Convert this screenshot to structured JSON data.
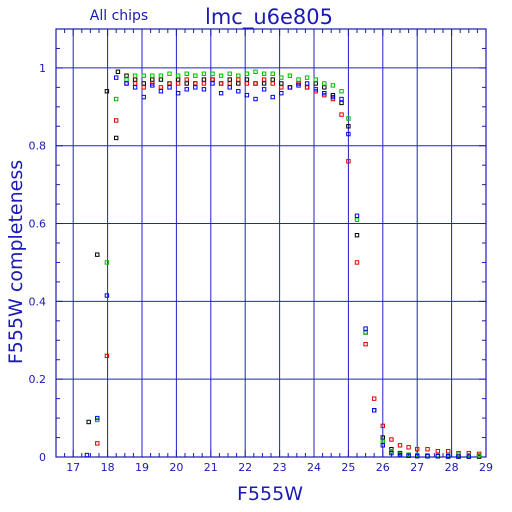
{
  "chart_data": {
    "type": "scatter",
    "title": "lmc_u6e805",
    "subtitle": "All chips",
    "xlabel": "F555W",
    "ylabel": "F555W completeness",
    "xlim": [
      16.5,
      29
    ],
    "ylim": [
      0,
      1.1
    ],
    "xticks": [
      17,
      18,
      19,
      20,
      21,
      22,
      23,
      24,
      25,
      26,
      27,
      28,
      29
    ],
    "yticks": [
      0,
      0.2,
      0.4,
      0.6,
      0.8,
      1
    ],
    "ytick_labels": [
      "0",
      "0.2",
      "0.4",
      "0.6",
      "0.8",
      "1"
    ],
    "grid": true,
    "marker": "open-square",
    "colors": {
      "axis": "#1a1ab4",
      "grid": "#2222cc"
    },
    "series": [
      {
        "color": "#000000",
        "points": [
          [
            17.45,
            0.09
          ],
          [
            17.7,
            0.52
          ],
          [
            17.98,
            0.94
          ],
          [
            18.25,
            0.82
          ],
          [
            18.3,
            0.99
          ],
          [
            18.55,
            0.98
          ],
          [
            18.8,
            0.97
          ],
          [
            19.05,
            0.96
          ],
          [
            19.3,
            0.97
          ],
          [
            19.55,
            0.97
          ],
          [
            19.8,
            0.96
          ],
          [
            20.05,
            0.97
          ],
          [
            20.3,
            0.96
          ],
          [
            20.55,
            0.96
          ],
          [
            20.8,
            0.97
          ],
          [
            21.05,
            0.97
          ],
          [
            21.3,
            0.96
          ],
          [
            21.55,
            0.97
          ],
          [
            21.8,
            0.96
          ],
          [
            22.05,
            0.97
          ],
          [
            22.3,
            0.96
          ],
          [
            22.55,
            0.96
          ],
          [
            22.8,
            0.97
          ],
          [
            23.05,
            0.96
          ],
          [
            23.3,
            0.95
          ],
          [
            23.55,
            0.96
          ],
          [
            23.8,
            0.95
          ],
          [
            24.05,
            0.96
          ],
          [
            24.3,
            0.95
          ],
          [
            24.55,
            0.93
          ],
          [
            24.8,
            0.91
          ],
          [
            25.0,
            0.85
          ],
          [
            25.25,
            0.57
          ],
          [
            25.5,
            0.32
          ],
          [
            25.75,
            0.12
          ],
          [
            26.0,
            0.05
          ],
          [
            26.25,
            0.02
          ],
          [
            26.5,
            0.01
          ],
          [
            26.75,
            0.005
          ],
          [
            27.0,
            0.003
          ],
          [
            27.3,
            0.002
          ],
          [
            27.6,
            0.002
          ],
          [
            27.9,
            0.001
          ],
          [
            28.2,
            0.001
          ],
          [
            28.5,
            0.001
          ],
          [
            28.8,
            0.001
          ]
        ]
      },
      {
        "color": "#dd0000",
        "points": [
          [
            17.7,
            0.035
          ],
          [
            17.98,
            0.26
          ],
          [
            18.25,
            0.865
          ],
          [
            18.55,
            0.96
          ],
          [
            18.8,
            0.96
          ],
          [
            19.05,
            0.95
          ],
          [
            19.3,
            0.96
          ],
          [
            19.55,
            0.95
          ],
          [
            19.8,
            0.96
          ],
          [
            20.05,
            0.96
          ],
          [
            20.3,
            0.97
          ],
          [
            20.55,
            0.96
          ],
          [
            20.8,
            0.96
          ],
          [
            21.05,
            0.97
          ],
          [
            21.3,
            0.96
          ],
          [
            21.55,
            0.96
          ],
          [
            21.8,
            0.97
          ],
          [
            22.05,
            0.96
          ],
          [
            22.3,
            0.96
          ],
          [
            22.55,
            0.97
          ],
          [
            22.8,
            0.96
          ],
          [
            23.05,
            0.95
          ],
          [
            23.3,
            0.95
          ],
          [
            23.55,
            0.96
          ],
          [
            23.8,
            0.95
          ],
          [
            24.05,
            0.94
          ],
          [
            24.3,
            0.93
          ],
          [
            24.55,
            0.92
          ],
          [
            24.8,
            0.88
          ],
          [
            25.0,
            0.76
          ],
          [
            25.25,
            0.5
          ],
          [
            25.5,
            0.29
          ],
          [
            25.75,
            0.15
          ],
          [
            26.0,
            0.08
          ],
          [
            26.25,
            0.045
          ],
          [
            26.5,
            0.03
          ],
          [
            26.75,
            0.025
          ],
          [
            27.0,
            0.02
          ],
          [
            27.3,
            0.02
          ],
          [
            27.6,
            0.015
          ],
          [
            27.9,
            0.015
          ],
          [
            28.2,
            0.01
          ],
          [
            28.5,
            0.01
          ],
          [
            28.8,
            0.008
          ]
        ]
      },
      {
        "color": "#00bb00",
        "points": [
          [
            17.7,
            0.095
          ],
          [
            17.98,
            0.5
          ],
          [
            18.25,
            0.92
          ],
          [
            18.55,
            0.97
          ],
          [
            18.8,
            0.98
          ],
          [
            19.05,
            0.98
          ],
          [
            19.3,
            0.98
          ],
          [
            19.55,
            0.98
          ],
          [
            19.8,
            0.985
          ],
          [
            20.05,
            0.98
          ],
          [
            20.3,
            0.985
          ],
          [
            20.55,
            0.98
          ],
          [
            20.8,
            0.985
          ],
          [
            21.05,
            0.985
          ],
          [
            21.3,
            0.98
          ],
          [
            21.55,
            0.985
          ],
          [
            21.8,
            0.98
          ],
          [
            22.05,
            0.985
          ],
          [
            22.3,
            0.99
          ],
          [
            22.55,
            0.985
          ],
          [
            22.8,
            0.985
          ],
          [
            23.05,
            0.975
          ],
          [
            23.3,
            0.98
          ],
          [
            23.55,
            0.97
          ],
          [
            23.8,
            0.975
          ],
          [
            24.05,
            0.97
          ],
          [
            24.3,
            0.96
          ],
          [
            24.55,
            0.955
          ],
          [
            24.8,
            0.94
          ],
          [
            25.0,
            0.87
          ],
          [
            25.25,
            0.61
          ],
          [
            25.5,
            0.32
          ],
          [
            25.75,
            0.12
          ],
          [
            26.0,
            0.04
          ],
          [
            26.25,
            0.015
          ],
          [
            26.5,
            0.008
          ],
          [
            26.75,
            0.006
          ],
          [
            27.0,
            0.005
          ],
          [
            27.3,
            0.004
          ],
          [
            27.6,
            0.004
          ],
          [
            27.9,
            0.005
          ],
          [
            28.2,
            0.006
          ],
          [
            28.5,
            0.005
          ],
          [
            28.8,
            0.004
          ]
        ]
      },
      {
        "color": "#0000ee",
        "points": [
          [
            17.4,
            0.005
          ],
          [
            17.7,
            0.1
          ],
          [
            17.98,
            0.415
          ],
          [
            18.25,
            0.975
          ],
          [
            18.55,
            0.96
          ],
          [
            18.8,
            0.95
          ],
          [
            19.05,
            0.925
          ],
          [
            19.3,
            0.955
          ],
          [
            19.55,
            0.94
          ],
          [
            19.8,
            0.95
          ],
          [
            20.05,
            0.935
          ],
          [
            20.3,
            0.945
          ],
          [
            20.55,
            0.95
          ],
          [
            20.8,
            0.945
          ],
          [
            21.05,
            0.96
          ],
          [
            21.3,
            0.935
          ],
          [
            21.55,
            0.95
          ],
          [
            21.8,
            0.94
          ],
          [
            22.05,
            0.93
          ],
          [
            22.3,
            0.92
          ],
          [
            22.55,
            0.945
          ],
          [
            22.8,
            0.925
          ],
          [
            23.05,
            0.935
          ],
          [
            23.3,
            0.95
          ],
          [
            23.55,
            0.955
          ],
          [
            23.8,
            0.96
          ],
          [
            24.05,
            0.945
          ],
          [
            24.3,
            0.935
          ],
          [
            24.55,
            0.925
          ],
          [
            24.8,
            0.92
          ],
          [
            25.0,
            0.83
          ],
          [
            25.25,
            0.62
          ],
          [
            25.5,
            0.33
          ],
          [
            25.75,
            0.12
          ],
          [
            26.0,
            0.03
          ],
          [
            26.25,
            0.01
          ],
          [
            26.5,
            0.005
          ],
          [
            26.75,
            0.003
          ],
          [
            27.0,
            0.002
          ],
          [
            27.3,
            0.002
          ],
          [
            27.6,
            0.002
          ],
          [
            27.9,
            0.002
          ],
          [
            28.2,
            0.001
          ],
          [
            28.5,
            0.001
          ]
        ]
      }
    ]
  }
}
